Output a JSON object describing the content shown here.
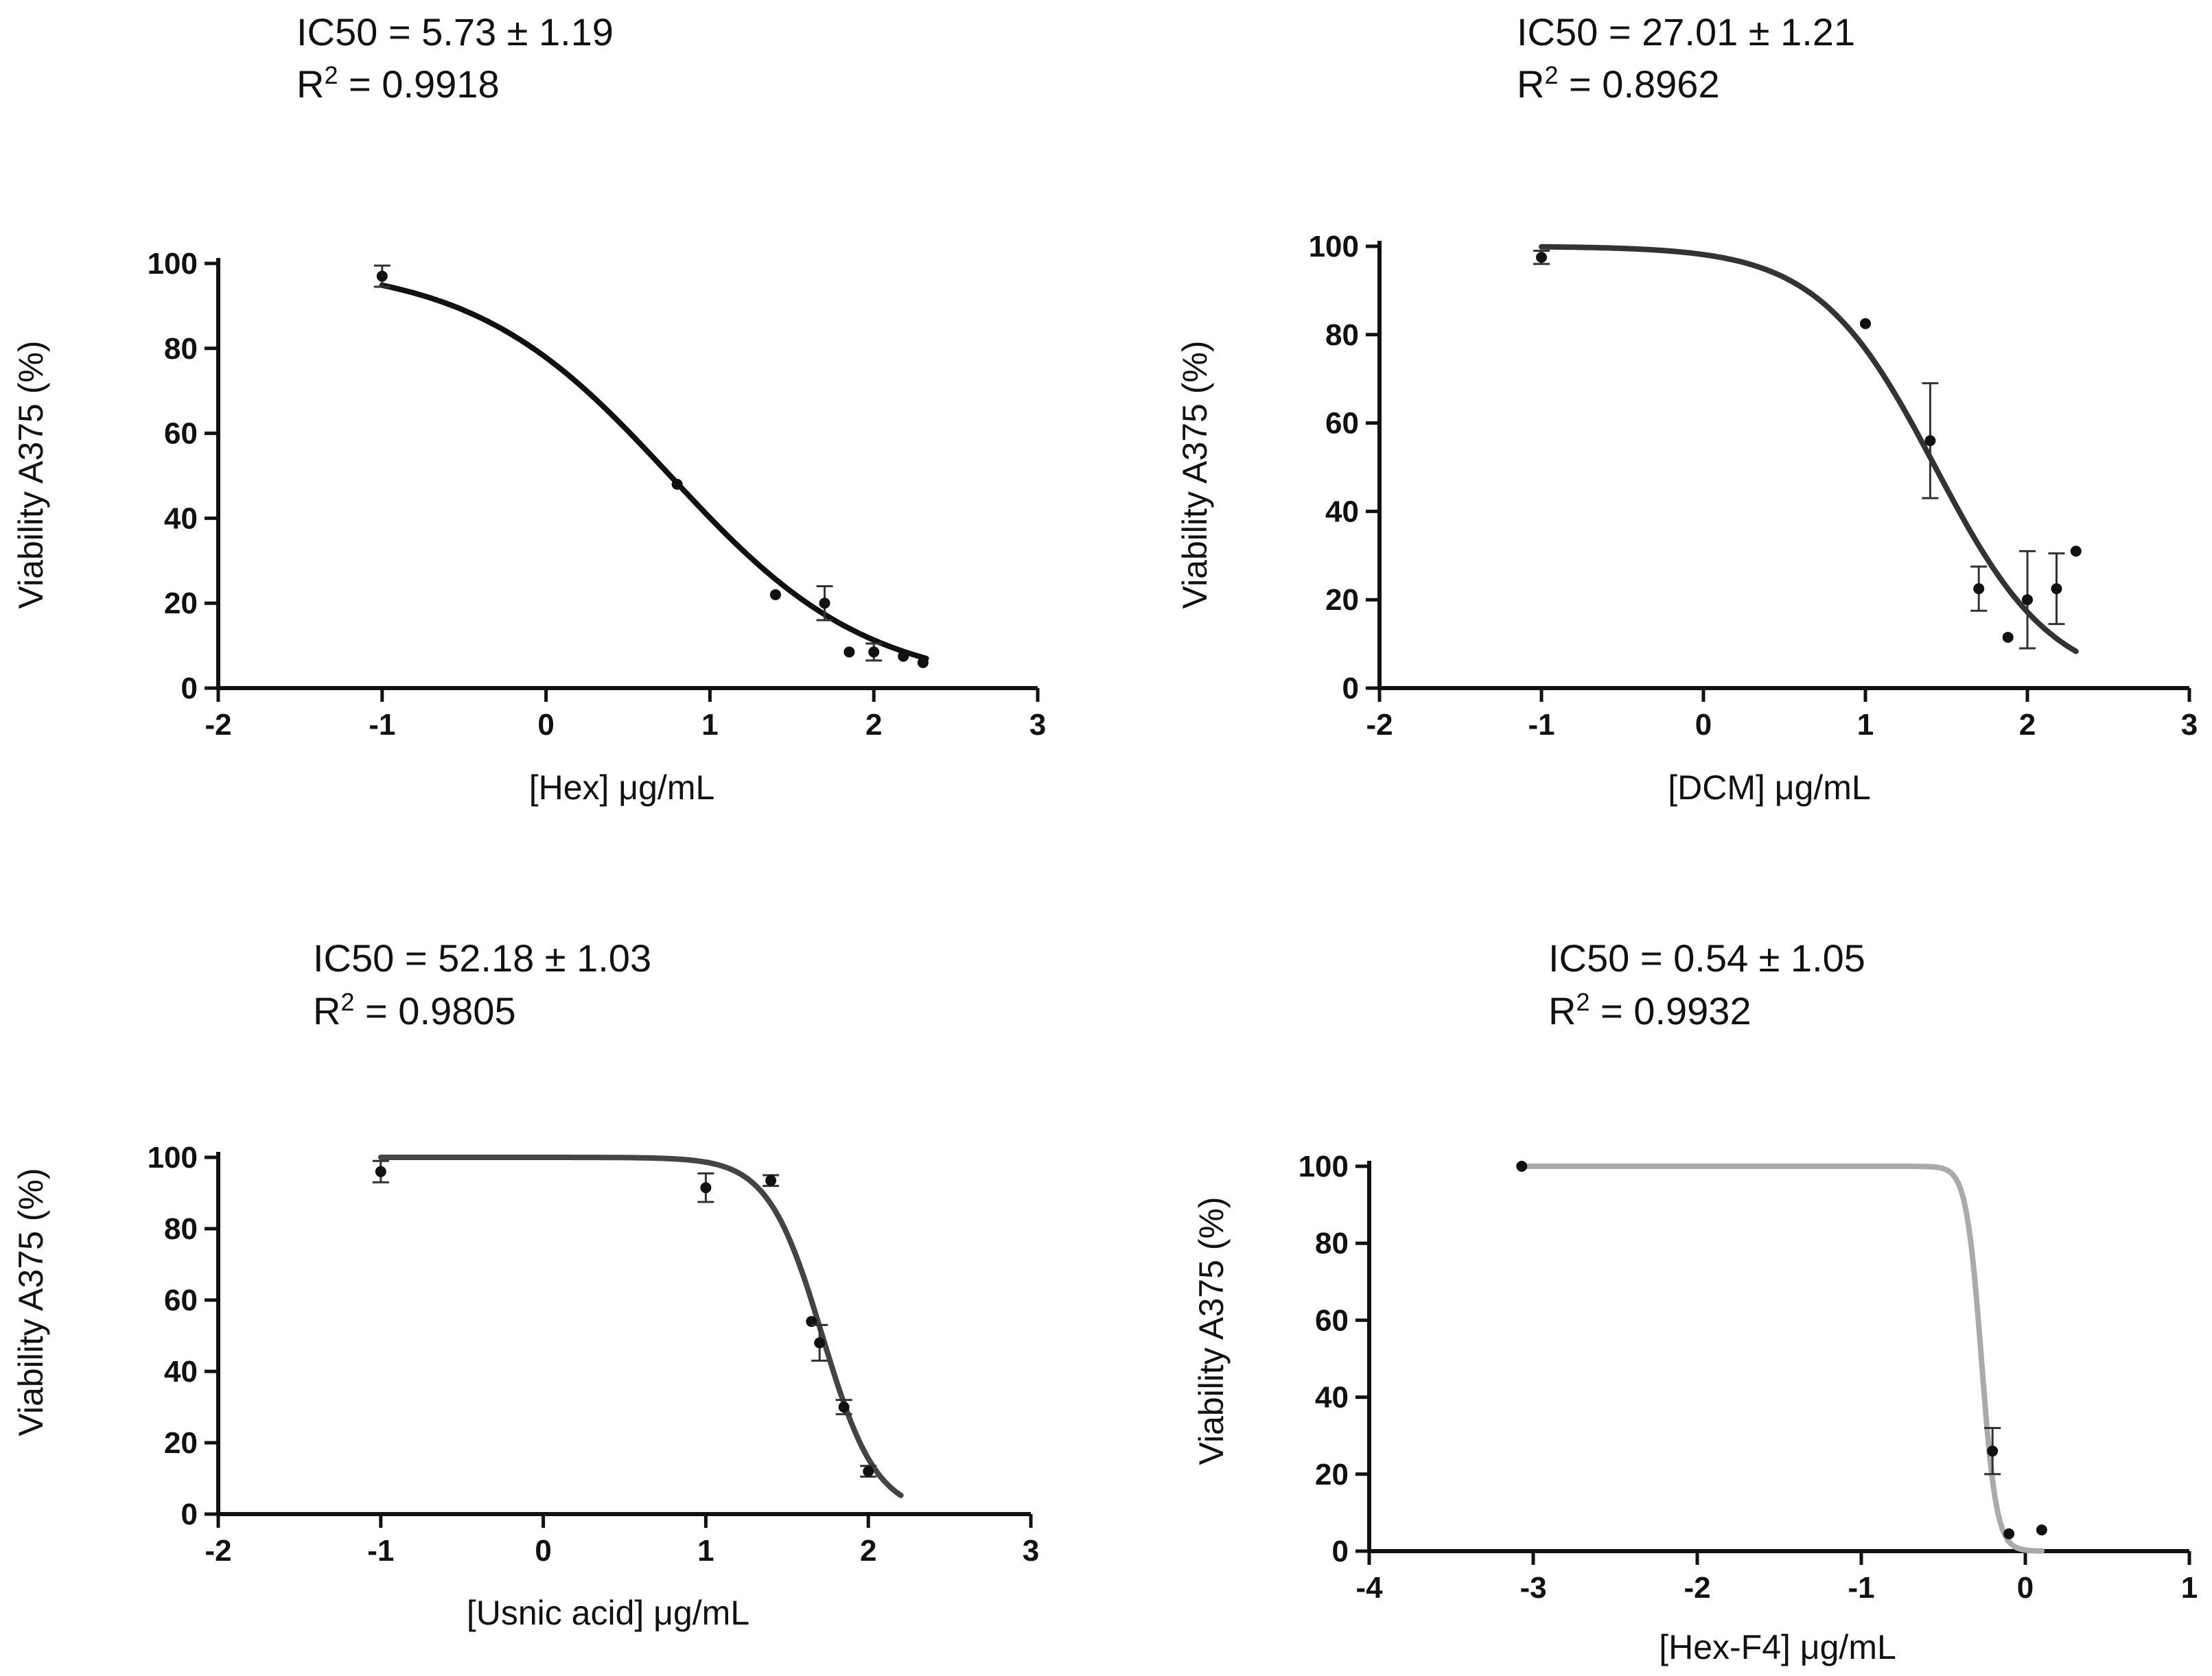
{
  "chart_data": [
    {
      "type": "scatter",
      "title": "",
      "annotation": {
        "ic50": "IC50 = 5.73 ± 1.19",
        "r2_prefix": "R",
        "r2_sup": "2",
        "r2_value": " = 0.9918"
      },
      "xlabel": "[Hex] μg/mL",
      "ylabel": "Viability A375 (%)",
      "xlim": [
        -2,
        3
      ],
      "ylim": [
        0,
        100
      ],
      "xticks": [
        "-2",
        "-1",
        "0",
        "1",
        "2",
        "3"
      ],
      "yticks": [
        "0",
        "20",
        "40",
        "60",
        "80",
        "100"
      ],
      "fit": {
        "top": 100,
        "bottom": 0,
        "logIC50": 0.758,
        "hill": 0.72,
        "xmin": -1,
        "xmax": 2.32,
        "color": "#111111"
      },
      "points": [
        {
          "x": -1.0,
          "y": 97,
          "err": 2.5
        },
        {
          "x": 0.8,
          "y": 48,
          "err": 0
        },
        {
          "x": 1.4,
          "y": 22,
          "err": 0
        },
        {
          "x": 1.7,
          "y": 20,
          "err": 4
        },
        {
          "x": 1.85,
          "y": 8.5,
          "err": 0
        },
        {
          "x": 2.0,
          "y": 8.5,
          "err": 2
        },
        {
          "x": 2.18,
          "y": 7.5,
          "err": 0
        },
        {
          "x": 2.3,
          "y": 6,
          "err": 0
        }
      ]
    },
    {
      "type": "scatter",
      "title": "",
      "annotation": {
        "ic50": "IC50 = 27.01 ± 1.21",
        "r2_prefix": "R",
        "r2_sup": "2",
        "r2_value": " = 0.8962"
      },
      "xlabel": "[DCM] μg/mL",
      "ylabel": "Viability A375 (%)",
      "xlim": [
        -2,
        3
      ],
      "ylim": [
        0,
        100
      ],
      "xticks": [
        "-2",
        "-1",
        "0",
        "1",
        "2",
        "3"
      ],
      "yticks": [
        "0",
        "20",
        "40",
        "60",
        "80",
        "100"
      ],
      "fit": {
        "top": 100,
        "bottom": 0,
        "logIC50": 1.432,
        "hill": 1.2,
        "xmin": -1,
        "xmax": 2.3,
        "color": "#333333"
      },
      "points": [
        {
          "x": -1.0,
          "y": 97.5,
          "err": 1.5
        },
        {
          "x": 1.0,
          "y": 82.5,
          "err": 0
        },
        {
          "x": 1.4,
          "y": 56,
          "err": 13
        },
        {
          "x": 1.7,
          "y": 22.5,
          "err": 5
        },
        {
          "x": 1.88,
          "y": 11.5,
          "err": 0
        },
        {
          "x": 2.0,
          "y": 20,
          "err": 11
        },
        {
          "x": 2.18,
          "y": 22.5,
          "err": 8
        },
        {
          "x": 2.3,
          "y": 31,
          "err": 0
        }
      ]
    },
    {
      "type": "scatter",
      "title": "",
      "annotation": {
        "ic50": "IC50 = 52.18 ± 1.03",
        "r2_prefix": "R",
        "r2_sup": "2",
        "r2_value": " = 0.9805"
      },
      "xlabel": "[Usnic acid] μg/mL",
      "ylabel": "Viability A375 (%)",
      "xlim": [
        -2,
        3
      ],
      "ylim": [
        0,
        100
      ],
      "xticks": [
        "-2",
        "-1",
        "0",
        "1",
        "2",
        "3"
      ],
      "yticks": [
        "0",
        "20",
        "40",
        "60",
        "80",
        "100"
      ],
      "fit": {
        "top": 100,
        "bottom": 0,
        "logIC50": 1.717,
        "hill": 2.6,
        "xmin": -1,
        "xmax": 2.2,
        "color": "#444444"
      },
      "points": [
        {
          "x": -1.0,
          "y": 96,
          "err": 3
        },
        {
          "x": 1.0,
          "y": 91.5,
          "err": 4
        },
        {
          "x": 1.4,
          "y": 93.5,
          "err": 1.5
        },
        {
          "x": 1.65,
          "y": 54,
          "err": 0
        },
        {
          "x": 1.7,
          "y": 48,
          "err": 5
        },
        {
          "x": 1.85,
          "y": 30,
          "err": 2
        },
        {
          "x": 2.0,
          "y": 12,
          "err": 1.5
        }
      ]
    },
    {
      "type": "scatter",
      "title": "",
      "annotation": {
        "ic50": "IC50 = 0.54 ± 1.05",
        "r2_prefix": "R",
        "r2_sup": "2",
        "r2_value": " = 0.9932"
      },
      "xlabel": "[Hex-F4] μg/mL",
      "ylabel": "Viability A375 (%)",
      "xlim": [
        -4,
        1
      ],
      "ylim": [
        0,
        100
      ],
      "xticks": [
        "-4",
        "-3",
        "-2",
        "-1",
        "0",
        "1"
      ],
      "yticks": [
        "0",
        "20",
        "40",
        "60",
        "80",
        "100"
      ],
      "fit": {
        "top": 100,
        "bottom": 0,
        "logIC50": -0.268,
        "hill": 9.5,
        "xmin": -3.07,
        "xmax": 0.1,
        "color": "#aaaaaa"
      },
      "points": [
        {
          "x": -3.07,
          "y": 100,
          "err": 0
        },
        {
          "x": -0.2,
          "y": 26,
          "err": 6
        },
        {
          "x": -0.1,
          "y": 4.5,
          "err": 0
        },
        {
          "x": 0.1,
          "y": 5.5,
          "err": 0
        }
      ]
    }
  ]
}
